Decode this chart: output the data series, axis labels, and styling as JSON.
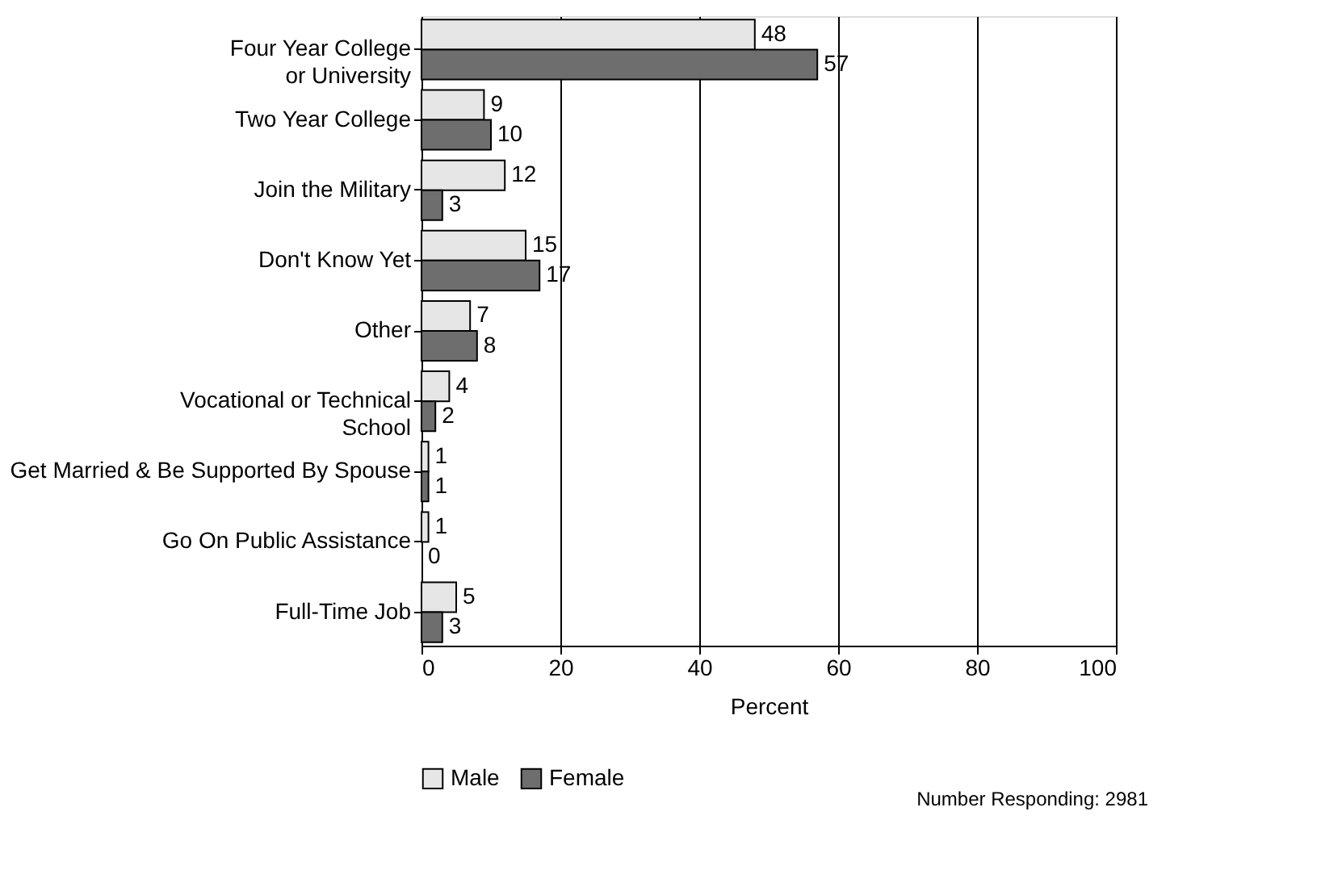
{
  "chart_data": {
    "type": "bar",
    "orientation": "horizontal",
    "xlabel": "Percent",
    "categories": [
      "Four Year College\nor University",
      "Two Year College",
      "Join the Military",
      "Don't Know Yet",
      "Other",
      "Vocational or Technical\nSchool",
      "Get Married & Be Supported By Spouse",
      "Go On Public Assistance",
      "Full-Time Job"
    ],
    "series": [
      {
        "name": "Male",
        "color": "#e6e6e6",
        "values": [
          48,
          9,
          12,
          15,
          7,
          4,
          1,
          1,
          5
        ]
      },
      {
        "name": "Female",
        "color": "#6e6e6e",
        "values": [
          57,
          10,
          3,
          17,
          8,
          2,
          1,
          0,
          3
        ]
      }
    ],
    "xlim": [
      0,
      100
    ],
    "xticks": [
      0,
      20,
      40,
      60,
      80,
      100
    ],
    "grid": "x",
    "legend": "bottom",
    "data_labels": true,
    "annotations": [
      "Number Responding: 2981"
    ]
  }
}
